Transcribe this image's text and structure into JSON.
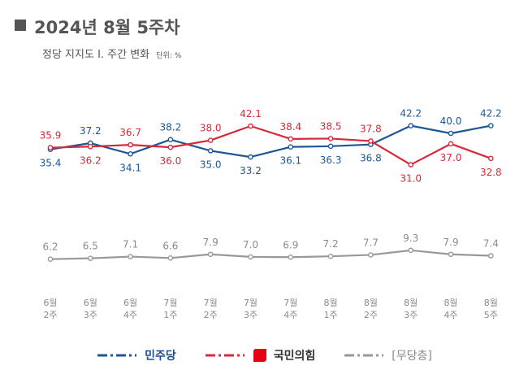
{
  "header": {
    "title": "2024년 8월 5주차",
    "subtitle": "정당 지지도 Ⅰ. 주간 변화",
    "unit": "단위: %"
  },
  "legend": {
    "democratic": "민주당",
    "ppp": "국민의힘",
    "none": "[무당층]"
  },
  "colors": {
    "democratic": "#1b5797",
    "ppp": "#d8283b",
    "none": "#999999"
  },
  "chart_data": {
    "type": "line",
    "categories": [
      "6월 2주",
      "6월 3주",
      "6월 4주",
      "7월 1주",
      "7월 2주",
      "7월 3주",
      "7월 4주",
      "8월 1주",
      "8월 2주",
      "8월 3주",
      "8월 4주",
      "8월 5주"
    ],
    "category_lines": [
      [
        "6월",
        "2주"
      ],
      [
        "6월",
        "3주"
      ],
      [
        "6월",
        "4주"
      ],
      [
        "7월",
        "1주"
      ],
      [
        "7월",
        "2주"
      ],
      [
        "7월",
        "3주"
      ],
      [
        "7월",
        "4주"
      ],
      [
        "8월",
        "1주"
      ],
      [
        "8월",
        "2주"
      ],
      [
        "8월",
        "3주"
      ],
      [
        "8월",
        "4주"
      ],
      [
        "8월",
        "5주"
      ]
    ],
    "series": [
      {
        "name": "민주당",
        "values": [
          35.4,
          37.2,
          34.1,
          38.2,
          35.0,
          33.2,
          36.1,
          36.3,
          36.8,
          42.2,
          40.0,
          42.2
        ],
        "color": "#1b5797"
      },
      {
        "name": "국민의힘",
        "values": [
          35.9,
          36.2,
          36.7,
          36.0,
          38.0,
          42.1,
          38.4,
          38.5,
          37.8,
          31.0,
          37.0,
          32.8
        ],
        "color": "#d8283b"
      },
      {
        "name": "[무당층]",
        "values": [
          6.2,
          6.5,
          7.1,
          6.6,
          7.9,
          7.0,
          6.9,
          7.2,
          7.7,
          9.3,
          7.9,
          7.4
        ],
        "color": "#999999"
      }
    ],
    "label_positions": [
      [
        "below",
        "above",
        "below",
        "above",
        "below",
        "below",
        "below",
        "below",
        "below",
        "above",
        "above",
        "above"
      ],
      [
        "above",
        "below",
        "above",
        "below",
        "above",
        "above",
        "above",
        "above",
        "above",
        "below",
        "below",
        "below"
      ],
      [
        "above",
        "above",
        "above",
        "above",
        "above",
        "above",
        "above",
        "above",
        "above",
        "above",
        "above",
        "above"
      ]
    ],
    "grid": false,
    "legend_position": "bottom"
  }
}
